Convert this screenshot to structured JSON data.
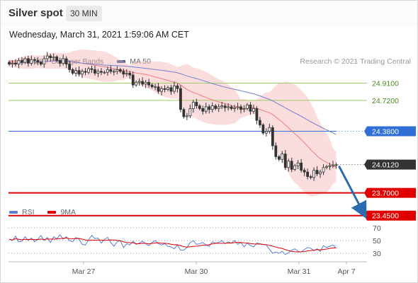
{
  "header": {
    "title": "Silver spot",
    "timeframe": "30 MIN",
    "timestamp": "Wednesday, March 31, 2021 1:59:06 AM CET"
  },
  "legend": {
    "bb_label": "MA 20 + Bollinger Bands",
    "ma50_label": "MA 50",
    "credit": "Research © 2021 Trading Central",
    "rsi_label": "RSI",
    "rsi_ma_label": "9MA"
  },
  "colors": {
    "bb_band": "#f8b4b4",
    "ma20": "#ef7b7b",
    "ma50": "#6f7fd0",
    "resistance": "#9ccc65",
    "pivot": "#2f6fd6",
    "support": "#e00000",
    "candle": "#333333",
    "rsi": "#5b7fd4",
    "rsi_ma": "#e00000",
    "arrow": "#2b6cb0"
  },
  "chart_data": {
    "type": "candlestick",
    "instrument": "Silver spot",
    "timeframe": "30 MIN",
    "x_ticks": [
      "Mar 27",
      "Mar 30",
      "Mar 31",
      "Apr 7"
    ],
    "price_levels": [
      {
        "value": "24.9100",
        "kind": "resistance"
      },
      {
        "value": "24.7200",
        "kind": "resistance"
      },
      {
        "value": "24.3800",
        "kind": "pivot"
      },
      {
        "value": "24.0120",
        "kind": "last"
      },
      {
        "value": "23.7000",
        "kind": "support"
      },
      {
        "value": "23.4500",
        "kind": "support"
      }
    ],
    "price_range": [
      23.38,
      25.4
    ],
    "approx_close": [
      25.12,
      25.13,
      25.12,
      25.16,
      25.14,
      25.18,
      25.13,
      25.17,
      25.16,
      25.14,
      25.12,
      25.18,
      25.21,
      25.19,
      25.2,
      25.16,
      25.13,
      25.18,
      25.12,
      25.06,
      25.02,
      25.05,
      25.01,
      25.04,
      25.03,
      25.07,
      25.06,
      25.02,
      25.04,
      25.03,
      25.03,
      25.06,
      25.04,
      25.04,
      25.06,
      25.04,
      25.01,
      25.02,
      25.0,
      24.89,
      24.92,
      24.93,
      24.9,
      24.92,
      24.89,
      24.87,
      24.87,
      24.82,
      24.85,
      24.84,
      24.86,
      24.82,
      24.88,
      24.85,
      24.62,
      24.54,
      24.55,
      24.63,
      24.7,
      24.66,
      24.63,
      24.6,
      24.65,
      24.62,
      24.66,
      24.63,
      24.65,
      24.66,
      24.64,
      24.65,
      24.63,
      24.64,
      24.65,
      24.62,
      24.63,
      24.67,
      24.6,
      24.63,
      24.5,
      24.45,
      24.36,
      24.38,
      24.42,
      24.22,
      24.1,
      24.07,
      24.13,
      23.98,
      24.05,
      23.96,
      24.0,
      24.03,
      23.95,
      23.93,
      23.88,
      23.87,
      23.95,
      23.91,
      23.93,
      23.98,
      23.99,
      24.0,
      24.01,
      24.01
    ],
    "forecast_arrow": {
      "from": "24.0120",
      "to": "23.4500"
    },
    "rsi_levels": [
      "70",
      "50",
      "30"
    ],
    "rsi_approx": [
      52,
      50,
      57,
      48,
      49,
      56,
      50,
      54,
      48,
      52,
      58,
      50,
      55,
      47,
      56,
      53,
      59,
      52,
      56,
      50,
      48,
      55,
      52,
      44,
      43,
      51,
      58,
      53,
      54,
      46,
      52,
      55,
      47,
      41,
      48,
      50,
      39,
      45,
      43,
      49,
      44,
      46,
      49,
      45,
      42,
      47,
      50,
      45,
      43,
      45,
      41,
      40,
      37,
      43,
      35,
      35,
      39,
      47,
      50,
      44,
      45,
      47,
      43,
      41,
      48,
      46,
      47,
      50,
      45,
      48,
      46,
      50,
      44,
      47,
      40,
      46,
      42,
      40,
      46,
      45,
      44,
      43,
      36,
      30,
      32,
      30,
      33,
      28,
      31,
      35,
      37,
      33,
      32,
      36,
      39,
      38,
      34,
      37,
      33,
      42,
      39,
      41,
      43,
      38
    ]
  }
}
